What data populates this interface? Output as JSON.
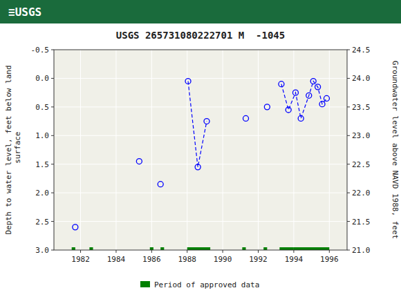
{
  "chart_data": {
    "type": "scatter",
    "title": "USGS 265731080222701 M  -1045",
    "annotations": [
      "≡USGS"
    ],
    "ylabel": "Depth to water level, feet below land\n surface",
    "y2label": "Groundwater level above NAVD 1988, feet",
    "xlim": [
      1980.5,
      1997.0
    ],
    "xticks": [
      1982,
      1984,
      1986,
      1988,
      1990,
      1992,
      1994,
      1996
    ],
    "ylim": [
      3.0,
      -0.5
    ],
    "yticks": [
      -0.5,
      {
        "value": 0.0,
        "label": "0.0"
      },
      0.5,
      {
        "value": 1.0,
        "label": "1.0"
      },
      1.5,
      {
        "value": 2.0,
        "label": "2.0"
      },
      2.5,
      {
        "value": 3.0,
        "label": "3.0"
      }
    ],
    "y2lim": [
      21.0,
      24.5
    ],
    "y2ticks": [
      {
        "value": 21.0,
        "label": "21.0"
      },
      21.5,
      {
        "value": 22.0,
        "label": "22.0"
      },
      22.5,
      {
        "value": 23.0,
        "label": "23.0"
      },
      23.5,
      {
        "value": 24.0,
        "label": "24.0"
      },
      24.5
    ],
    "grid": true,
    "legend": "bottom",
    "x": [
      1981.7,
      1985.3,
      1986.5,
      1988.05,
      1988.6,
      1989.1,
      1991.3,
      1992.5,
      1993.3,
      1993.7,
      1994.1,
      1994.4,
      1994.85,
      1995.1,
      1995.35,
      1995.6,
      1995.85
    ],
    "series": [
      {
        "type": "scatter",
        "marker": "circle",
        "color": "blue",
        "values": [
          2.6,
          1.45,
          1.85,
          0.05,
          1.55,
          0.75,
          0.7,
          0.5,
          0.1,
          0.55,
          0.25,
          0.7,
          0.3,
          0.05,
          0.15,
          0.45,
          0.35
        ]
      },
      {
        "type": "line",
        "line_style": "dashed",
        "color": "blue",
        "values": [
          null,
          null,
          null,
          0.05,
          1.55,
          0.75,
          null,
          null,
          0.1,
          0.55,
          0.25,
          0.7,
          0.3,
          0.05,
          0.15,
          0.45,
          0.35
        ]
      },
      {
        "type": "bar",
        "orientation": "horizontal",
        "name": "Period of approved data",
        "color": "#008000",
        "y": 3.0,
        "starts": [
          1981.5,
          1982.5,
          1985.9,
          1986.5,
          1988.0,
          1991.1,
          1992.3,
          1993.2,
          1994.0
        ],
        "ends": [
          1981.7,
          1982.7,
          1986.1,
          1986.7,
          1989.3,
          1991.3,
          1992.5,
          1994.0,
          1996.0
        ]
      }
    ]
  }
}
